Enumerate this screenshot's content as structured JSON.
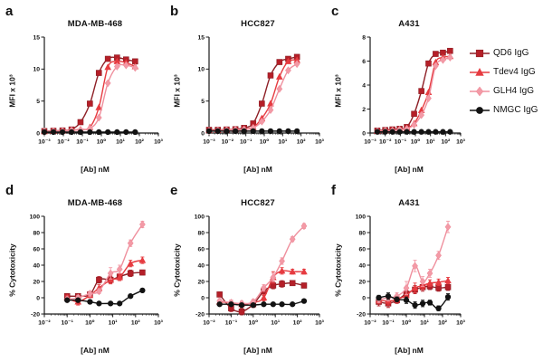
{
  "figure": {
    "background": "#ffffff"
  },
  "legend": {
    "items": [
      {
        "label": "QD6 IgG",
        "marker": "square",
        "color": "#b51f28",
        "line": "#8e1f26"
      },
      {
        "label": "Tdev4 IgG",
        "marker": "triangle",
        "color": "#e63b40",
        "line": "#e63b40"
      },
      {
        "label": "GLH4 IgG",
        "marker": "diamond",
        "color": "#f39aa6",
        "line": "#ef8f9d"
      },
      {
        "label": "NMGC IgG",
        "marker": "circle",
        "color": "#121212",
        "line": "#121212"
      }
    ]
  },
  "chart_data": [
    {
      "id": "a",
      "letter": "a",
      "type": "line",
      "title": "MDA-MB-468",
      "xlabel": "[Ab] nM",
      "ylabel": "MFI x 10³",
      "xscale": "log",
      "xlim": [
        0.001,
        1000
      ],
      "ylim": [
        0,
        15
      ],
      "xticks": [
        0.001,
        0.01,
        0.1,
        1,
        10,
        100,
        1000
      ],
      "xtick_labels": [
        "10⁻³",
        "10⁻²",
        "10⁻¹",
        "10⁰",
        "10¹",
        "10²",
        "10³"
      ],
      "yticks": [
        0,
        5,
        10,
        15
      ],
      "x": [
        0.001,
        0.003,
        0.009,
        0.027,
        0.08,
        0.25,
        0.74,
        2.2,
        6.7,
        20,
        60
      ],
      "series": [
        {
          "name": "QD6 IgG",
          "marker": "square",
          "color": "#b51f28",
          "line": "#8e1f26",
          "values": [
            0.3,
            0.35,
            0.4,
            0.55,
            1.7,
            4.6,
            9.4,
            11.6,
            11.8,
            11.5,
            11.2
          ]
        },
        {
          "name": "Tdev4 IgG",
          "marker": "triangle",
          "color": "#e63b40",
          "line": "#e63b40",
          "values": [
            0.25,
            0.3,
            0.35,
            0.45,
            0.55,
            0.9,
            4.0,
            10.3,
            11.2,
            11.0,
            10.4
          ]
        },
        {
          "name": "GLH4 IgG",
          "marker": "diamond",
          "color": "#f39aa6",
          "line": "#ef8f9d",
          "values": [
            0.25,
            0.28,
            0.3,
            0.4,
            0.5,
            0.7,
            2.4,
            7.8,
            10.4,
            10.6,
            10.2
          ]
        },
        {
          "name": "NMGC IgG",
          "marker": "circle",
          "color": "#121212",
          "line": "#121212",
          "values": [
            0.15,
            0.15,
            0.15,
            0.15,
            0.15,
            0.15,
            0.15,
            0.15,
            0.15,
            0.15,
            0.15
          ]
        }
      ]
    },
    {
      "id": "b",
      "letter": "b",
      "type": "line",
      "title": "HCC827",
      "xlabel": "[Ab] nM",
      "ylabel": "MFI x 10³",
      "xscale": "log",
      "xlim": [
        0.001,
        1000
      ],
      "ylim": [
        0,
        15
      ],
      "xticks": [
        0.001,
        0.01,
        0.1,
        1,
        10,
        100,
        1000
      ],
      "xtick_labels": [
        "10⁻³",
        "10⁻²",
        "10⁻¹",
        "10⁰",
        "10¹",
        "10²",
        "10³"
      ],
      "yticks": [
        0,
        5,
        10,
        15
      ],
      "x": [
        0.001,
        0.003,
        0.009,
        0.027,
        0.08,
        0.25,
        0.74,
        2.2,
        6.7,
        20,
        60
      ],
      "series": [
        {
          "name": "QD6 IgG",
          "marker": "square",
          "color": "#b51f28",
          "line": "#8e1f26",
          "values": [
            0.5,
            0.5,
            0.55,
            0.6,
            0.8,
            1.5,
            4.6,
            9.0,
            11.1,
            11.6,
            11.9
          ]
        },
        {
          "name": "Tdev4 IgG",
          "marker": "triangle",
          "color": "#e63b40",
          "line": "#e63b40",
          "values": [
            0.4,
            0.45,
            0.5,
            0.55,
            0.6,
            0.9,
            2.3,
            4.6,
            8.8,
            11.2,
            11.4
          ]
        },
        {
          "name": "GLH4 IgG",
          "marker": "diamond",
          "color": "#f39aa6",
          "line": "#ef8f9d",
          "values": [
            0.35,
            0.4,
            0.45,
            0.5,
            0.55,
            0.8,
            1.8,
            3.6,
            6.9,
            9.8,
            10.8
          ]
        },
        {
          "name": "NMGC IgG",
          "marker": "circle",
          "color": "#121212",
          "line": "#121212",
          "values": [
            0.3,
            0.3,
            0.3,
            0.3,
            0.3,
            0.3,
            0.3,
            0.3,
            0.3,
            0.3,
            0.3
          ]
        }
      ]
    },
    {
      "id": "c",
      "letter": "c",
      "type": "line",
      "title": "A431",
      "xlabel": "[Ab] nM",
      "ylabel": "MFI x 10³",
      "xscale": "log",
      "xlim": [
        0.001,
        1000
      ],
      "ylim": [
        0,
        8
      ],
      "xticks": [
        0.001,
        0.01,
        0.1,
        1,
        10,
        100,
        1000
      ],
      "xtick_labels": [
        "10⁻³",
        "10⁻²",
        "10⁻¹",
        "10⁰",
        "10¹",
        "10²",
        "10³"
      ],
      "yticks": [
        0,
        2,
        4,
        6,
        8
      ],
      "x": [
        0.003,
        0.01,
        0.03,
        0.09,
        0.27,
        0.82,
        2.5,
        7.4,
        22,
        67,
        200
      ],
      "series": [
        {
          "name": "QD6 IgG",
          "marker": "square",
          "color": "#b51f28",
          "line": "#8e1f26",
          "values": [
            0.2,
            0.25,
            0.3,
            0.35,
            0.5,
            1.6,
            3.5,
            5.8,
            6.6,
            6.7,
            6.85
          ]
        },
        {
          "name": "Tdev4 IgG",
          "marker": "triangle",
          "color": "#e63b40",
          "line": "#e63b40",
          "values": [
            0.15,
            0.2,
            0.25,
            0.3,
            0.4,
            0.8,
            1.9,
            3.4,
            5.9,
            6.3,
            6.4
          ]
        },
        {
          "name": "GLH4 IgG",
          "marker": "diamond",
          "color": "#f39aa6",
          "line": "#ef8f9d",
          "values": [
            0.15,
            0.18,
            0.2,
            0.28,
            0.35,
            0.7,
            1.5,
            2.9,
            5.6,
            6.1,
            6.3
          ]
        },
        {
          "name": "NMGC IgG",
          "marker": "circle",
          "color": "#121212",
          "line": "#121212",
          "values": [
            0.1,
            0.1,
            0.1,
            0.1,
            0.1,
            0.1,
            0.1,
            0.1,
            0.1,
            0.1,
            0.1
          ]
        }
      ]
    },
    {
      "id": "d",
      "letter": "d",
      "type": "line",
      "title": "MDA-MB-468",
      "xlabel": "[Ab] nM",
      "ylabel": "% Cytotoxicity",
      "xscale": "log",
      "xlim": [
        0.01,
        1000
      ],
      "ylim": [
        -20,
        100
      ],
      "xticks": [
        0.01,
        0.1,
        1,
        10,
        100,
        1000
      ],
      "xtick_labels": [
        "10⁻²",
        "10⁻¹",
        "10⁰",
        "10¹",
        "10²",
        "10³"
      ],
      "yticks": [
        -20,
        0,
        20,
        40,
        60,
        80,
        100
      ],
      "x": [
        0.1,
        0.3,
        1,
        2.5,
        8,
        20,
        60,
        200
      ],
      "series": [
        {
          "name": "QD6 IgG",
          "marker": "square",
          "color": "#b51f28",
          "line": "#8e1f26",
          "values": [
            2,
            2,
            4,
            22,
            22,
            26,
            30,
            31
          ],
          "errors": [
            3,
            3,
            3,
            4,
            4,
            4,
            4,
            3
          ]
        },
        {
          "name": "Tdev4 IgG",
          "marker": "triangle",
          "color": "#e63b40",
          "line": "#e63b40",
          "values": [
            0,
            -5,
            3,
            12,
            22,
            25,
            42,
            46
          ],
          "errors": [
            3,
            4,
            3,
            4,
            5,
            4,
            4,
            4
          ]
        },
        {
          "name": "GLH4 IgG",
          "marker": "diamond",
          "color": "#f39aa6",
          "line": "#ef8f9d",
          "values": [
            -2,
            0,
            5,
            8,
            30,
            35,
            67,
            90
          ],
          "errors": [
            3,
            3,
            3,
            3,
            7,
            5,
            4,
            4
          ]
        },
        {
          "name": "NMGC IgG",
          "marker": "circle",
          "color": "#121212",
          "line": "#121212",
          "values": [
            -3,
            -3,
            -5,
            -7,
            -7,
            -7,
            2,
            9
          ],
          "errors": [
            2,
            2,
            2,
            2,
            2,
            2,
            2,
            2
          ]
        }
      ]
    },
    {
      "id": "e",
      "letter": "e",
      "type": "line",
      "title": "HCC827",
      "xlabel": "[Ab] nM",
      "ylabel": "% Cytotoxicity",
      "xscale": "log",
      "xlim": [
        0.01,
        1000
      ],
      "ylim": [
        -20,
        100
      ],
      "xticks": [
        0.01,
        0.1,
        1,
        10,
        100,
        1000
      ],
      "xtick_labels": [
        "10⁻²",
        "10⁻¹",
        "10⁰",
        "10¹",
        "10²",
        "10³"
      ],
      "yticks": [
        -20,
        0,
        20,
        40,
        60,
        80,
        100
      ],
      "x": [
        0.03,
        0.1,
        0.3,
        1,
        3,
        8,
        20,
        60,
        200
      ],
      "series": [
        {
          "name": "QD6 IgG",
          "marker": "square",
          "color": "#b51f28",
          "line": "#8e1f26",
          "values": [
            4,
            -13,
            -17,
            -8,
            8,
            15,
            17,
            18,
            15
          ],
          "errors": [
            3,
            4,
            4,
            4,
            5,
            4,
            4,
            3,
            3
          ]
        },
        {
          "name": "Tdev4 IgG",
          "marker": "triangle",
          "color": "#e63b40",
          "line": "#e63b40",
          "values": [
            -5,
            -6,
            -8,
            -6,
            0,
            25,
            33,
            32,
            32
          ],
          "errors": [
            3,
            3,
            3,
            3,
            4,
            7,
            4,
            3,
            3
          ]
        },
        {
          "name": "GLH4 IgG",
          "marker": "diamond",
          "color": "#f39aa6",
          "line": "#ef8f9d",
          "values": [
            -4,
            -6,
            -7,
            -5,
            12,
            25,
            45,
            72,
            88
          ],
          "errors": [
            3,
            3,
            3,
            3,
            4,
            5,
            4,
            3,
            3
          ]
        },
        {
          "name": "NMGC IgG",
          "marker": "circle",
          "color": "#121212",
          "line": "#121212",
          "values": [
            -8,
            -8,
            -9,
            -9,
            -8,
            -8,
            -8,
            -8,
            -4
          ],
          "errors": [
            2,
            2,
            2,
            2,
            2,
            2,
            2,
            2,
            2
          ]
        }
      ]
    },
    {
      "id": "f",
      "letter": "f",
      "type": "line",
      "title": "A431",
      "xlabel": "[Ab] nM",
      "ylabel": "% Cytotoxicity",
      "xscale": "log",
      "xlim": [
        0.01,
        1000
      ],
      "ylim": [
        -20,
        100
      ],
      "xticks": [
        0.01,
        0.1,
        1,
        10,
        100,
        1000
      ],
      "xtick_labels": [
        "10⁻²",
        "10⁻¹",
        "10⁰",
        "10¹",
        "10²",
        "10³"
      ],
      "yticks": [
        -20,
        0,
        20,
        40,
        60,
        80,
        100
      ],
      "x": [
        0.03,
        0.1,
        0.3,
        1,
        3,
        8,
        20,
        60,
        200
      ],
      "series": [
        {
          "name": "QD6 IgG",
          "marker": "square",
          "color": "#b51f28",
          "line": "#8e1f26",
          "values": [
            -5,
            -7,
            -3,
            5,
            10,
            13,
            14,
            12,
            13
          ],
          "errors": [
            5,
            5,
            4,
            5,
            5,
            5,
            4,
            4,
            4
          ]
        },
        {
          "name": "Tdev4 IgG",
          "marker": "triangle",
          "color": "#e63b40",
          "line": "#e63b40",
          "values": [
            -3,
            -4,
            -2,
            3,
            12,
            15,
            18,
            19,
            21
          ],
          "errors": [
            4,
            5,
            4,
            6,
            6,
            5,
            4,
            4,
            4
          ]
        },
        {
          "name": "GLH4 IgG",
          "marker": "diamond",
          "color": "#f39aa6",
          "line": "#ef8f9d",
          "values": [
            -2,
            0,
            2,
            12,
            39,
            20,
            30,
            52,
            87
          ],
          "errors": [
            4,
            4,
            4,
            8,
            7,
            6,
            5,
            5,
            7
          ]
        },
        {
          "name": "NMGC IgG",
          "marker": "circle",
          "color": "#121212",
          "line": "#121212",
          "values": [
            0,
            2,
            -2,
            -3,
            -9,
            -7,
            -6,
            -13,
            1
          ],
          "errors": [
            3,
            4,
            3,
            4,
            4,
            4,
            3,
            3,
            4
          ]
        }
      ]
    }
  ]
}
